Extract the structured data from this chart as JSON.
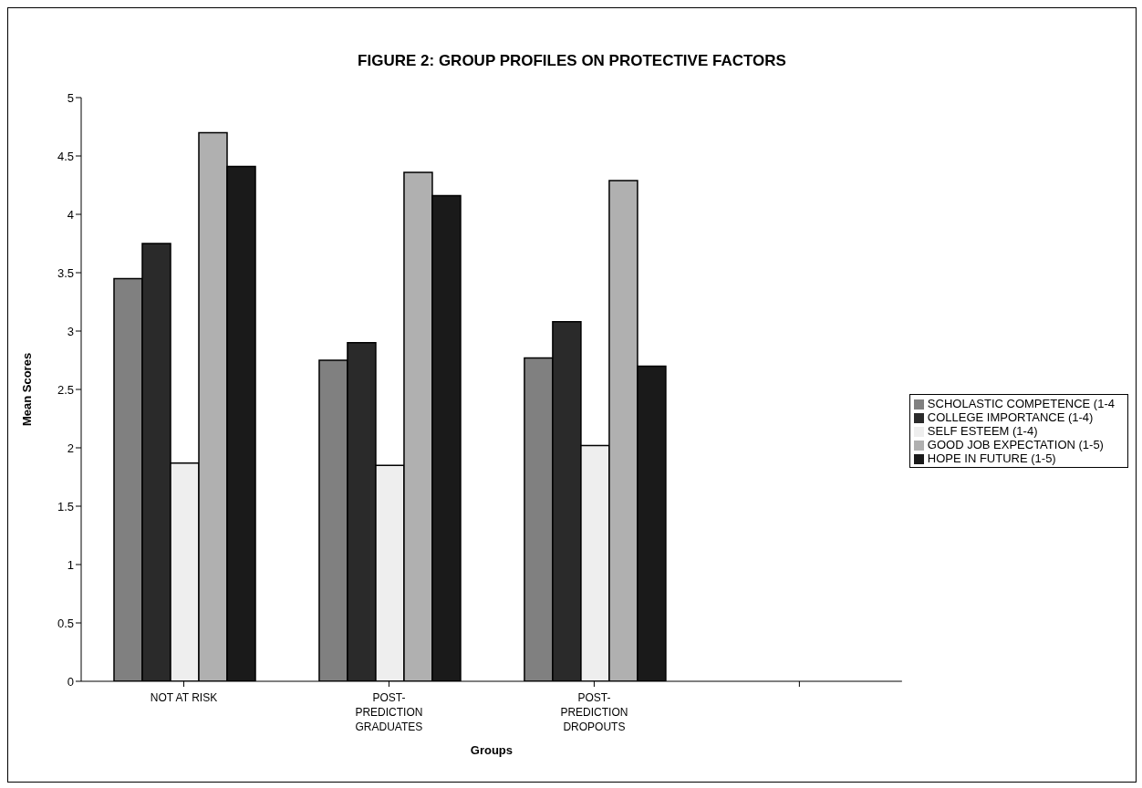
{
  "chart_data": {
    "type": "bar",
    "title": "FIGURE 2: GROUP PROFILES ON PROTECTIVE FACTORS",
    "xlabel": "Groups",
    "ylabel": "Mean  Scores",
    "categories": [
      "NOT AT RISK",
      "POST-\nPREDICTION\nGRADUATES",
      "POST-\nPREDICTION\nDROPOUTS",
      null
    ],
    "series": [
      {
        "name": "SCHOLASTIC COMPETENCE (1-4",
        "color": "#808080",
        "values": [
          3.45,
          2.75,
          2.77,
          null
        ]
      },
      {
        "name": "COLLEGE IMPORTANCE (1-4)",
        "color": "#2a2a2a",
        "values": [
          3.75,
          2.9,
          3.08,
          null
        ]
      },
      {
        "name": "SELF ESTEEM (1-4)",
        "color": "#eeeeee",
        "values": [
          1.87,
          1.85,
          2.02,
          null
        ]
      },
      {
        "name": "GOOD JOB EXPECTATION (1-5)",
        "color": "#b0b0b0",
        "values": [
          4.7,
          4.36,
          4.29,
          null
        ]
      },
      {
        "name": "HOPE IN FUTURE (1-5)",
        "color": "#1a1a1a",
        "values": [
          4.41,
          4.16,
          2.7,
          null
        ]
      }
    ],
    "ylim": [
      0,
      5
    ],
    "yticks": [
      0,
      0.5,
      1,
      1.5,
      2,
      2.5,
      3,
      3.5,
      4,
      4.5,
      5
    ],
    "grid": false,
    "legend": "right"
  }
}
